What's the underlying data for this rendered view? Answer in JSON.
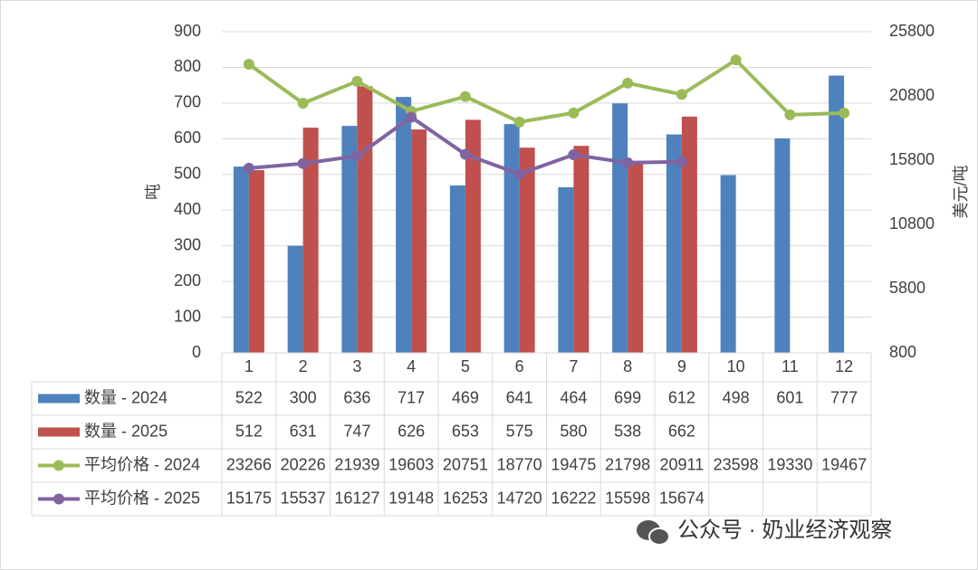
{
  "chart_data": {
    "type": "bar",
    "y_label": "吨",
    "y2_label": "美元/吨",
    "categories": [
      "1",
      "2",
      "3",
      "4",
      "5",
      "6",
      "7",
      "8",
      "9",
      "10",
      "11",
      "12"
    ],
    "ylim": [
      0,
      900
    ],
    "yticks": [
      0,
      100,
      200,
      300,
      400,
      500,
      600,
      700,
      800,
      900
    ],
    "y2lim": [
      800,
      25800
    ],
    "y2ticks": [
      800,
      5800,
      10800,
      15800,
      20800,
      25800
    ],
    "grid": true,
    "data_table": true,
    "series": [
      {
        "name": "数量 - 2024",
        "type": "bar",
        "color": "#4f81bd",
        "values": [
          522,
          300,
          636,
          717,
          469,
          641,
          464,
          699,
          612,
          498,
          601,
          777
        ]
      },
      {
        "name": "数量 - 2025",
        "type": "bar",
        "color": "#c0504d",
        "values": [
          512,
          631,
          747,
          626,
          653,
          575,
          580,
          538,
          662,
          null,
          null,
          null
        ]
      },
      {
        "name": "平均价格 - 2024",
        "type": "line",
        "axis": "y2",
        "color": "#9bbb59",
        "values": [
          23266,
          20226,
          21939,
          19603,
          20751,
          18770,
          19475,
          21798,
          20911,
          23598,
          19330,
          19467
        ]
      },
      {
        "name": "平均价格 - 2025",
        "type": "line",
        "axis": "y2",
        "color": "#8064a2",
        "values": [
          15175,
          15537,
          16127,
          19148,
          16253,
          14720,
          16222,
          15598,
          15674,
          null,
          null,
          null
        ]
      }
    ],
    "watermark": "公众号 · 奶业经济观察"
  }
}
